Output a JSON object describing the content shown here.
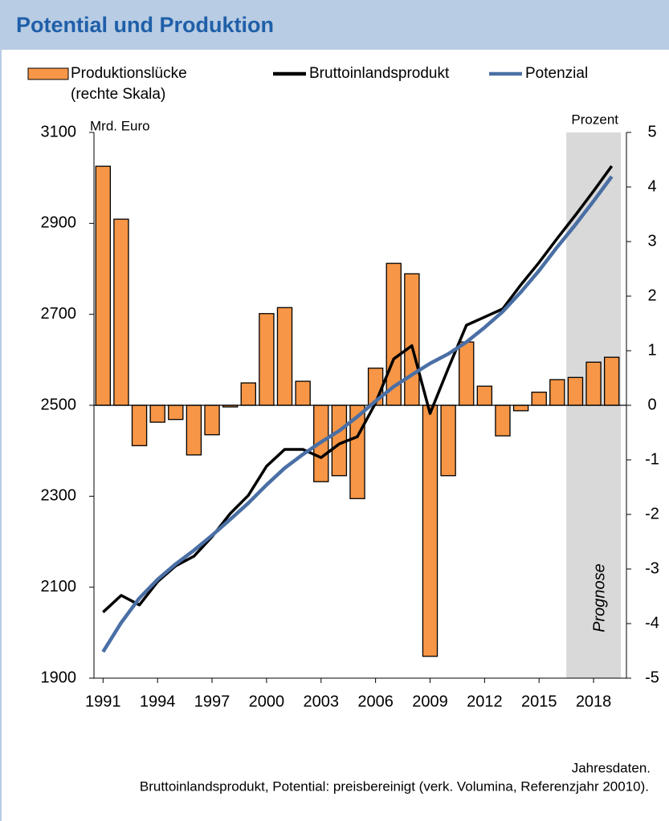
{
  "header": {
    "title": "Potential und Produktion"
  },
  "chart_data": {
    "type": "bar",
    "x": [
      1991,
      1992,
      1993,
      1994,
      1995,
      1996,
      1997,
      1998,
      1999,
      2000,
      2001,
      2002,
      2003,
      2004,
      2005,
      2006,
      2007,
      2008,
      2009,
      2010,
      2011,
      2012,
      2013,
      2014,
      2015,
      2016,
      2017,
      2018,
      2019
    ],
    "xlim": [
      1990.5,
      2019.5
    ],
    "xticks": [
      1991,
      1994,
      1997,
      2000,
      2003,
      2006,
      2009,
      2012,
      2015,
      2018
    ],
    "y_label": "Mrd. Euro",
    "y2_label": "Prozent",
    "ylim": [
      1900,
      3100
    ],
    "yticks": [
      1900,
      2100,
      2300,
      2500,
      2700,
      2900,
      3100
    ],
    "y2lim": [
      -5,
      5
    ],
    "y2ticks": [
      -5,
      -4,
      -3,
      -2,
      -1,
      0,
      1,
      2,
      3,
      4,
      5
    ],
    "legend_note": "(rechte Skala)",
    "shaded_region": {
      "label": "Prognose",
      "from": 2016.5,
      "to": 2019.5,
      "color": "#d9d9d9"
    },
    "series": [
      {
        "name": "Produktionslücke",
        "type": "bar",
        "axis": "y2",
        "color": "#f79646",
        "values": [
          4.38,
          3.41,
          -0.74,
          -0.31,
          -0.26,
          -0.91,
          -0.54,
          -0.03,
          0.41,
          1.68,
          1.79,
          0.44,
          -1.4,
          -1.29,
          -1.71,
          0.68,
          2.6,
          2.41,
          -4.6,
          -1.29,
          1.16,
          0.35,
          -0.56,
          -0.1,
          0.24,
          0.47,
          0.51,
          0.79,
          0.88
        ]
      },
      {
        "name": "Bruttoinlandsprodukt",
        "type": "line",
        "color": "#000000",
        "values": [
          2045,
          2082,
          2061,
          2112,
          2147,
          2168,
          2211,
          2262,
          2302,
          2366,
          2403,
          2403,
          2385,
          2415,
          2431,
          2505,
          2602,
          2631,
          2482,
          2581,
          2676,
          2694,
          2712,
          2765,
          2814,
          2867,
          2918,
          2971,
          3026
        ]
      },
      {
        "name": "Potenzial",
        "type": "line",
        "color": "#4a6fa5",
        "values": [
          1958,
          2022,
          2076,
          2117,
          2151,
          2181,
          2214,
          2249,
          2285,
          2325,
          2362,
          2392,
          2419,
          2444,
          2475,
          2509,
          2541,
          2567,
          2592,
          2613,
          2639,
          2671,
          2706,
          2749,
          2796,
          2848,
          2897,
          2949,
          3003
        ]
      }
    ]
  },
  "footer": {
    "lines": [
      "Jahresdaten.",
      "Bruttoinlandsprodukt, Potential: preisbereinigt (verk. Volumina, Referenzjahr 20010)."
    ]
  }
}
